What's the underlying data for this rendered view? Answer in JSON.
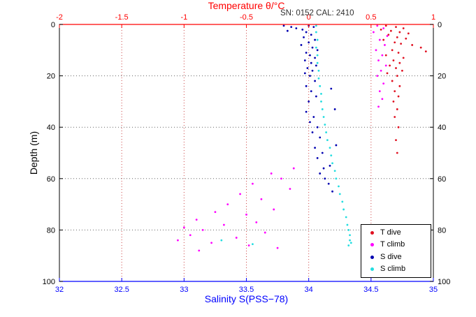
{
  "chart_data": {
    "type": "scatter",
    "title": "Temperature θ/°C",
    "annotation": "SN: 0152  CAL: 2410",
    "xlabel_top": "Temperature θ/°C",
    "xlabel_bottom": "Salinity S(PSS−78)",
    "ylabel": "Depth (m)",
    "axes": {
      "temperature": {
        "min": -2,
        "max": 1,
        "ticks": [
          -2,
          -1.5,
          -1,
          -0.5,
          0,
          0.5,
          1
        ],
        "labels": [
          "-2",
          "-1.5",
          "-1",
          "-0.5",
          "0",
          "0.5",
          "1"
        ],
        "color": "#ff0000",
        "position": "top"
      },
      "salinity": {
        "min": 32,
        "max": 35,
        "ticks": [
          32,
          32.5,
          33,
          33.5,
          34,
          34.5,
          35
        ],
        "labels": [
          "32",
          "32.5",
          "33",
          "33.5",
          "34",
          "34.5",
          "35"
        ],
        "color": "#0000ff",
        "position": "bottom"
      },
      "depth": {
        "min": 0,
        "max": 100,
        "ticks": [
          0,
          20,
          40,
          60,
          80,
          100
        ],
        "labels": [
          "0",
          "20",
          "40",
          "60",
          "80",
          "100"
        ],
        "color": "#000000",
        "position": "left-right",
        "direction": "down"
      }
    },
    "grid": {
      "on": true,
      "style": "dotted",
      "vertical_color": "#cc4444",
      "horizontal_color": "#666666"
    },
    "legend": {
      "position": "bottom-right"
    },
    "series": [
      {
        "name": "T dive",
        "axis": "temperature",
        "color": "#e01020",
        "marker": "dot",
        "points": [
          [
            0.62,
            0.5
          ],
          [
            0.7,
            1
          ],
          [
            0.76,
            1.5
          ],
          [
            0.58,
            2
          ],
          [
            0.66,
            2.5
          ],
          [
            0.73,
            3
          ],
          [
            0.8,
            3.5
          ],
          [
            0.64,
            4
          ],
          [
            0.71,
            5
          ],
          [
            0.78,
            5.5
          ],
          [
            0.6,
            6
          ],
          [
            0.69,
            7
          ],
          [
            0.74,
            7.5
          ],
          [
            0.83,
            8
          ],
          [
            0.9,
            9
          ],
          [
            0.67,
            10
          ],
          [
            0.94,
            10.5
          ],
          [
            0.72,
            11
          ],
          [
            0.62,
            12
          ],
          [
            0.76,
            13
          ],
          [
            0.68,
            14
          ],
          [
            0.73,
            15
          ],
          [
            0.65,
            16
          ],
          [
            0.7,
            17
          ],
          [
            0.75,
            18
          ],
          [
            0.63,
            19
          ],
          [
            0.71,
            20
          ],
          [
            0.67,
            22
          ],
          [
            0.73,
            24
          ],
          [
            0.69,
            26
          ],
          [
            0.72,
            28
          ],
          [
            0.68,
            30
          ],
          [
            0.71,
            33
          ],
          [
            0.69,
            36
          ],
          [
            0.72,
            40
          ],
          [
            0.7,
            45
          ],
          [
            0.71,
            50
          ]
        ]
      },
      {
        "name": "T climb",
        "axis": "temperature",
        "color": "#ff00ff",
        "marker": "dot",
        "points": [
          [
            0.55,
            0.5
          ],
          [
            0.6,
            1.5
          ],
          [
            0.52,
            3
          ],
          [
            0.63,
            4.5
          ],
          [
            0.57,
            6
          ],
          [
            0.61,
            8
          ],
          [
            0.54,
            10
          ],
          [
            0.59,
            12
          ],
          [
            0.56,
            14
          ],
          [
            0.62,
            16
          ],
          [
            0.58,
            18
          ],
          [
            0.55,
            20
          ],
          [
            0.6,
            23
          ],
          [
            0.57,
            26
          ],
          [
            0.59,
            29
          ],
          [
            0.56,
            32
          ],
          [
            -0.12,
            56
          ],
          [
            -0.3,
            58
          ],
          [
            -0.22,
            60
          ],
          [
            -0.45,
            62
          ],
          [
            -0.15,
            64
          ],
          [
            -0.55,
            66
          ],
          [
            -0.38,
            68
          ],
          [
            -0.65,
            70
          ],
          [
            -0.28,
            72
          ],
          [
            -0.75,
            73
          ],
          [
            -0.5,
            74
          ],
          [
            -0.9,
            76
          ],
          [
            -0.42,
            77
          ],
          [
            -0.68,
            78
          ],
          [
            -1.0,
            79
          ],
          [
            -0.85,
            80
          ],
          [
            -0.35,
            81
          ],
          [
            -0.95,
            82
          ],
          [
            -0.58,
            83
          ],
          [
            -1.05,
            84
          ],
          [
            -0.78,
            85
          ],
          [
            -0.48,
            86
          ],
          [
            -0.25,
            87
          ],
          [
            -0.88,
            88
          ]
        ]
      },
      {
        "name": "S dive",
        "axis": "salinity",
        "color": "#0000b0",
        "marker": "dot",
        "points": [
          [
            33.8,
            0.5
          ],
          [
            33.86,
            1
          ],
          [
            33.9,
            1.5
          ],
          [
            33.95,
            2
          ],
          [
            33.83,
            2.5
          ],
          [
            34.0,
            0.5
          ],
          [
            34.04,
            1
          ],
          [
            33.98,
            3
          ],
          [
            34.02,
            4
          ],
          [
            33.96,
            5
          ],
          [
            34.05,
            6
          ],
          [
            34.0,
            7
          ],
          [
            33.94,
            8
          ],
          [
            34.03,
            9
          ],
          [
            34.07,
            10
          ],
          [
            33.98,
            11
          ],
          [
            34.01,
            12
          ],
          [
            34.05,
            13
          ],
          [
            33.97,
            14
          ],
          [
            34.02,
            15
          ],
          [
            34.06,
            16
          ],
          [
            33.99,
            17
          ],
          [
            34.03,
            18
          ],
          [
            33.97,
            19
          ],
          [
            34.01,
            20
          ],
          [
            34.05,
            22
          ],
          [
            33.98,
            24
          ],
          [
            34.18,
            25
          ],
          [
            34.02,
            26
          ],
          [
            34.06,
            28
          ],
          [
            34.0,
            30
          ],
          [
            34.21,
            33
          ],
          [
            33.98,
            34
          ],
          [
            34.04,
            36
          ],
          [
            34.01,
            38
          ],
          [
            34.07,
            40
          ],
          [
            34.03,
            42
          ],
          [
            34.09,
            44
          ],
          [
            34.22,
            47
          ],
          [
            34.05,
            48
          ],
          [
            34.11,
            50
          ],
          [
            34.07,
            52
          ],
          [
            34.17,
            55
          ],
          [
            34.12,
            56
          ],
          [
            34.09,
            58
          ],
          [
            34.13,
            60
          ],
          [
            34.16,
            62
          ],
          [
            34.19,
            65
          ]
        ]
      },
      {
        "name": "S climb",
        "axis": "salinity",
        "color": "#22dde0",
        "marker": "dot",
        "points": [
          [
            34.06,
            0.5
          ],
          [
            34.06,
            3
          ],
          [
            34.07,
            6
          ],
          [
            34.06,
            9
          ],
          [
            34.07,
            12
          ],
          [
            34.07,
            15
          ],
          [
            34.08,
            18
          ],
          [
            34.08,
            21
          ],
          [
            34.09,
            24
          ],
          [
            34.1,
            27
          ],
          [
            34.1,
            30
          ],
          [
            34.11,
            33
          ],
          [
            34.12,
            36
          ],
          [
            34.13,
            39
          ],
          [
            34.14,
            42
          ],
          [
            34.15,
            45
          ],
          [
            34.17,
            48
          ],
          [
            34.18,
            51
          ],
          [
            34.19,
            54
          ],
          [
            34.21,
            57
          ],
          [
            34.22,
            60
          ],
          [
            34.24,
            63
          ],
          [
            34.25,
            66
          ],
          [
            34.27,
            69
          ],
          [
            34.28,
            72
          ],
          [
            34.3,
            75
          ],
          [
            34.31,
            78
          ],
          [
            34.32,
            80
          ],
          [
            34.33,
            82
          ],
          [
            34.33,
            84
          ],
          [
            34.34,
            85
          ],
          [
            34.32,
            86
          ],
          [
            33.3,
            84
          ],
          [
            33.55,
            85.5
          ]
        ]
      }
    ]
  }
}
